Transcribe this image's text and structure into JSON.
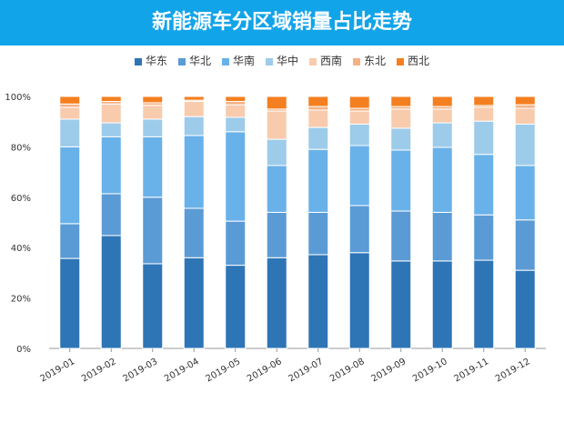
{
  "chart_data": {
    "type": "bar",
    "stacked": true,
    "title": "新能源车分区域销量占比走势",
    "categories": [
      "2019-01",
      "2019-02",
      "2019-03",
      "2019-04",
      "2019-05",
      "2019-06",
      "2019-07",
      "2019-08",
      "2019-09",
      "2019-10",
      "2019-11",
      "2019-12"
    ],
    "ylim": [
      0,
      100
    ],
    "yticks": [
      "0%",
      "20%",
      "40%",
      "60%",
      "80%",
      "100%"
    ],
    "legend_position": "top",
    "grid": false,
    "series": [
      {
        "name": "华东",
        "color": "#2e75b6",
        "values": [
          35.7,
          44.8,
          33.6,
          36.0,
          33.0,
          36.0,
          37.2,
          38.0,
          34.7,
          34.7,
          35.0,
          31.0
        ]
      },
      {
        "name": "华北",
        "color": "#5b9bd5",
        "values": [
          13.8,
          16.6,
          26.4,
          19.6,
          17.5,
          18.0,
          16.8,
          18.7,
          19.8,
          19.3,
          18.0,
          20.0
        ]
      },
      {
        "name": "华南",
        "color": "#69b1e9",
        "values": [
          30.5,
          22.6,
          24.0,
          28.9,
          35.5,
          18.6,
          25.0,
          23.8,
          24.2,
          25.8,
          24.0,
          21.6
        ]
      },
      {
        "name": "华中",
        "color": "#9dcbea",
        "values": [
          11.0,
          5.5,
          7.0,
          7.5,
          5.7,
          10.4,
          8.7,
          8.5,
          8.7,
          9.7,
          13.2,
          16.4
        ]
      },
      {
        "name": "西南",
        "color": "#f8cbad",
        "values": [
          4.7,
          7.5,
          5.5,
          6.0,
          5.0,
          11.2,
          6.9,
          5.2,
          7.6,
          5.5,
          5.5,
          6.3
        ]
      },
      {
        "name": "东北",
        "color": "#f4b183",
        "values": [
          1.3,
          1.0,
          1.0,
          0.5,
          1.3,
          0.8,
          1.4,
          1.1,
          1.0,
          1.0,
          0.7,
          1.4
        ]
      },
      {
        "name": "西北",
        "color": "#f47f20",
        "values": [
          3.0,
          2.0,
          2.5,
          1.5,
          2.0,
          5.0,
          4.0,
          4.7,
          4.0,
          4.0,
          3.6,
          3.3
        ]
      }
    ]
  }
}
